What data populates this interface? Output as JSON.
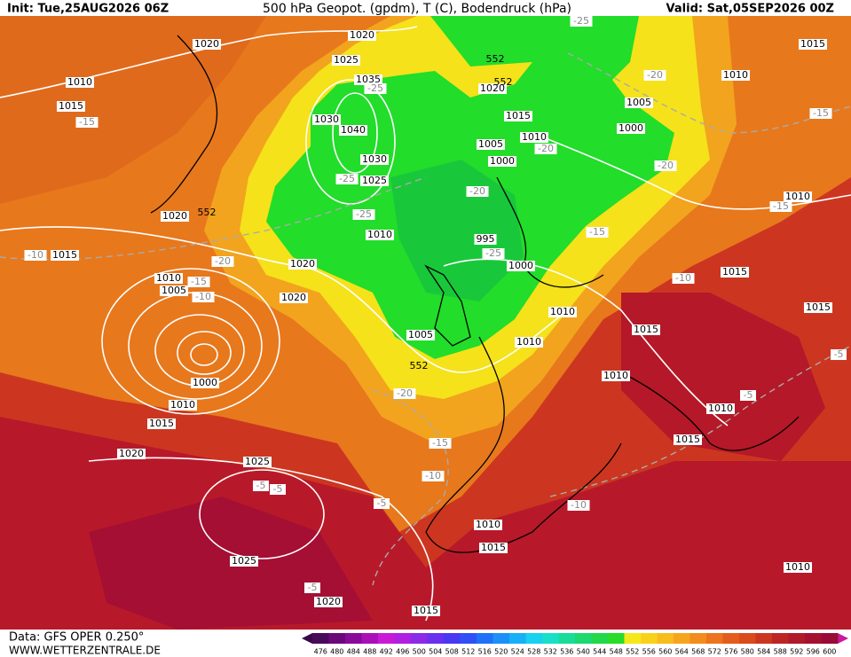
{
  "header": {
    "init": "Init: Tue,25AUG2026 06Z",
    "title": "500 hPa Geopot. (gpdm), T (C), Bodendruck (hPa)",
    "valid": "Valid: Sat,05SEP2026 00Z"
  },
  "footer": {
    "data": "Data: GFS OPER 0.250°",
    "site": "WWW.WETTERZENTRALE.DE"
  },
  "colorbar": {
    "labels": [
      "476",
      "480",
      "484",
      "488",
      "492",
      "496",
      "500",
      "504",
      "508",
      "512",
      "516",
      "520",
      "524",
      "528",
      "532",
      "536",
      "540",
      "544",
      "548",
      "552",
      "556",
      "560",
      "564",
      "568",
      "572",
      "576",
      "580",
      "584",
      "588",
      "592",
      "596",
      "600"
    ]
  },
  "map": {
    "pressure_labels": [
      "1020",
      "1020",
      "1025",
      "1010",
      "1015",
      "1035",
      "1030",
      "1040",
      "1030",
      "1025",
      "1020",
      "1015",
      "1010",
      "1020",
      "1010",
      "1005",
      "1020",
      "1000",
      "1010",
      "1015",
      "1020",
      "1025",
      "1025",
      "1020",
      "1015",
      "1015",
      "1010",
      "1015",
      "1010",
      "1005",
      "1000",
      "1005",
      "1010",
      "1000",
      "1015",
      "1020",
      "995",
      "1000",
      "1005",
      "1010",
      "1010",
      "1015",
      "1010",
      "1010",
      "1015",
      "1015",
      "1010",
      "1015",
      "1010"
    ],
    "temperature_labels": [
      "-15",
      "-10",
      "-15",
      "-20",
      "-10",
      "-25",
      "-25",
      "-25",
      "-20",
      "-25",
      "-20",
      "-20",
      "-20",
      "-15",
      "-15",
      "-15",
      "-10",
      "-20",
      "-15",
      "-10",
      "-5",
      "-10",
      "-5",
      "-5",
      "-5",
      "-5",
      "-25",
      "-5"
    ],
    "height_labels": [
      "552",
      "552",
      "552",
      "552"
    ]
  }
}
